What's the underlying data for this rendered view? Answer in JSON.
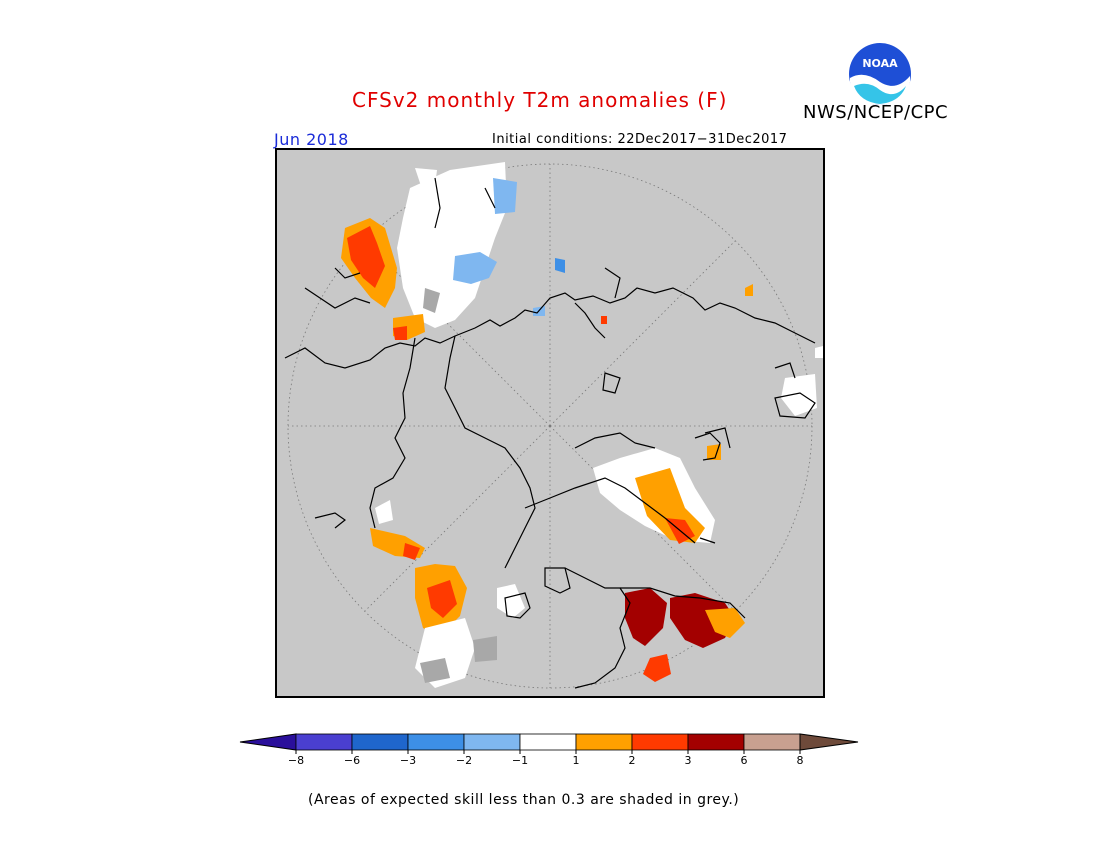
{
  "title": "CFSv2 monthly T2m anomalies (F)",
  "agency": "NWS/NCEP/CPC",
  "logo_text": "NOAA",
  "valid_month": "Jun 2018",
  "initial_conditions": "Initial conditions: 22Dec2017−31Dec2017",
  "footnote": "(Areas of expected skill less than 0.3 are shaded in grey.)",
  "colors": {
    "background_grey": "#c8c8c8",
    "title_red": "#e00000",
    "month_blue": "#1a2bd8"
  },
  "legend": {
    "tick_labels": [
      "−8",
      "−6",
      "−3",
      "−2",
      "−1",
      "1",
      "2",
      "3",
      "6",
      "8"
    ],
    "colors": [
      "#2a0f9b",
      "#4a3fd0",
      "#1f66cc",
      "#3d8fe6",
      "#7fb7f0",
      "#ffffff",
      "#ffa000",
      "#ff3a00",
      "#a30000",
      "#c8a090",
      "#6e4a3a"
    ]
  }
}
